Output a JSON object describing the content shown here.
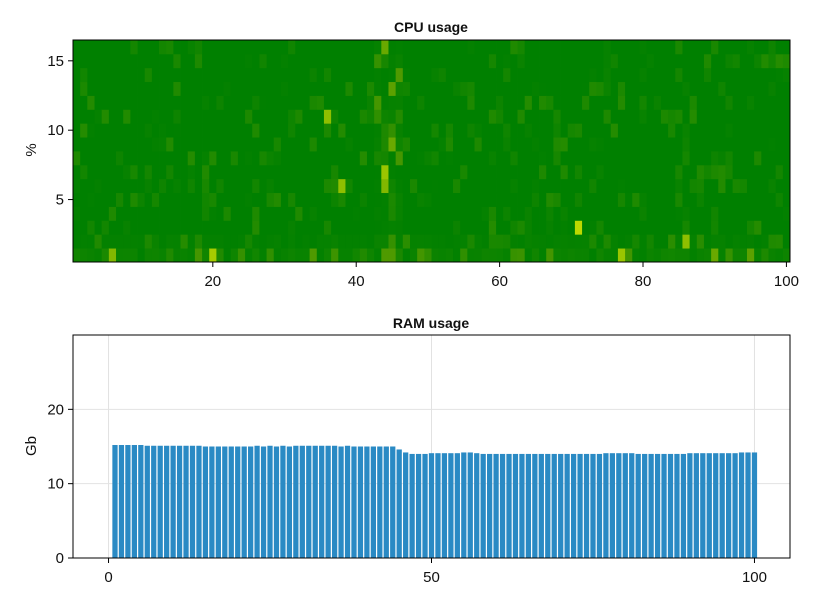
{
  "chart_data": [
    {
      "type": "heatmap",
      "title": "CPU usage",
      "xlabel": "",
      "ylabel": "%",
      "xlim": [
        0.5,
        100.5
      ],
      "ylim": [
        0.5,
        16.5
      ],
      "x_ticks": [
        20,
        40,
        60,
        80,
        100
      ],
      "y_ticks": [
        5,
        10,
        15
      ],
      "grid": false,
      "n_cols": 100,
      "n_rows": 16,
      "colormap": [
        "#008000",
        "#1f8a00",
        "#4f9a00",
        "#8fbf00",
        "#c8e000"
      ],
      "hot_cells": [
        {
          "x": 20,
          "y": 1,
          "v": 0.85
        },
        {
          "x": 6,
          "y": 1,
          "v": 0.7
        },
        {
          "x": 44,
          "y": 1,
          "v": 0.5
        },
        {
          "x": 45,
          "y": 1,
          "v": 0.5
        },
        {
          "x": 77,
          "y": 1,
          "v": 0.8
        },
        {
          "x": 71,
          "y": 3,
          "v": 0.95
        },
        {
          "x": 86,
          "y": 2,
          "v": 0.75
        },
        {
          "x": 44,
          "y": 6,
          "v": 0.7
        },
        {
          "x": 38,
          "y": 6,
          "v": 0.75
        },
        {
          "x": 44,
          "y": 7,
          "v": 0.8
        },
        {
          "x": 45,
          "y": 9,
          "v": 0.6
        },
        {
          "x": 36,
          "y": 11,
          "v": 0.75
        },
        {
          "x": 45,
          "y": 13,
          "v": 0.55
        },
        {
          "x": 46,
          "y": 14,
          "v": 0.5
        },
        {
          "x": 44,
          "y": 16,
          "v": 0.6
        },
        {
          "x": 43,
          "y": 12,
          "v": 0.45
        },
        {
          "x": 46,
          "y": 8,
          "v": 0.45
        },
        {
          "x": 90,
          "y": 1,
          "v": 0.6
        },
        {
          "x": 95,
          "y": 1,
          "v": 0.55
        },
        {
          "x": 34,
          "y": 1,
          "v": 0.5
        }
      ]
    },
    {
      "type": "bar",
      "title": "RAM usage",
      "xlabel": "",
      "ylabel": "Gb",
      "xlim": [
        -5.5,
        105.5
      ],
      "ylim": [
        0,
        30
      ],
      "x_ticks": [
        0,
        50,
        100
      ],
      "y_ticks": [
        0,
        10,
        20
      ],
      "grid": true,
      "color": "#2a8ac4",
      "x": [
        1,
        2,
        3,
        4,
        5,
        6,
        7,
        8,
        9,
        10,
        11,
        12,
        13,
        14,
        15,
        16,
        17,
        18,
        19,
        20,
        21,
        22,
        23,
        24,
        25,
        26,
        27,
        28,
        29,
        30,
        31,
        32,
        33,
        34,
        35,
        36,
        37,
        38,
        39,
        40,
        41,
        42,
        43,
        44,
        45,
        46,
        47,
        48,
        49,
        50,
        51,
        52,
        53,
        54,
        55,
        56,
        57,
        58,
        59,
        60,
        61,
        62,
        63,
        64,
        65,
        66,
        67,
        68,
        69,
        70,
        71,
        72,
        73,
        74,
        75,
        76,
        77,
        78,
        79,
        80,
        81,
        82,
        83,
        84,
        85,
        86,
        87,
        88,
        89,
        90,
        91,
        92,
        93,
        94,
        95,
        96,
        97,
        98,
        99,
        100
      ],
      "values": [
        15.2,
        15.2,
        15.2,
        15.2,
        15.2,
        15.1,
        15.1,
        15.1,
        15.1,
        15.1,
        15.1,
        15.1,
        15.1,
        15.1,
        15.0,
        15.0,
        15.0,
        15.0,
        15.0,
        15.0,
        15.0,
        15.0,
        15.1,
        15.0,
        15.1,
        15.0,
        15.1,
        15.0,
        15.1,
        15.1,
        15.1,
        15.1,
        15.1,
        15.1,
        15.1,
        15.0,
        15.1,
        15.0,
        15.0,
        15.0,
        15.0,
        15.0,
        15.0,
        15.0,
        14.6,
        14.2,
        14.0,
        14.0,
        14.0,
        14.1,
        14.1,
        14.1,
        14.1,
        14.1,
        14.2,
        14.2,
        14.1,
        14.0,
        14.0,
        14.0,
        14.0,
        14.0,
        14.0,
        14.0,
        14.0,
        14.0,
        14.0,
        14.0,
        14.0,
        14.0,
        14.0,
        14.0,
        14.0,
        14.0,
        14.0,
        14.0,
        14.1,
        14.1,
        14.1,
        14.1,
        14.1,
        14.0,
        14.0,
        14.0,
        14.0,
        14.0,
        14.0,
        14.0,
        14.0,
        14.1,
        14.1,
        14.1,
        14.1,
        14.1,
        14.1,
        14.1,
        14.1,
        14.2,
        14.2,
        14.2
      ]
    }
  ]
}
